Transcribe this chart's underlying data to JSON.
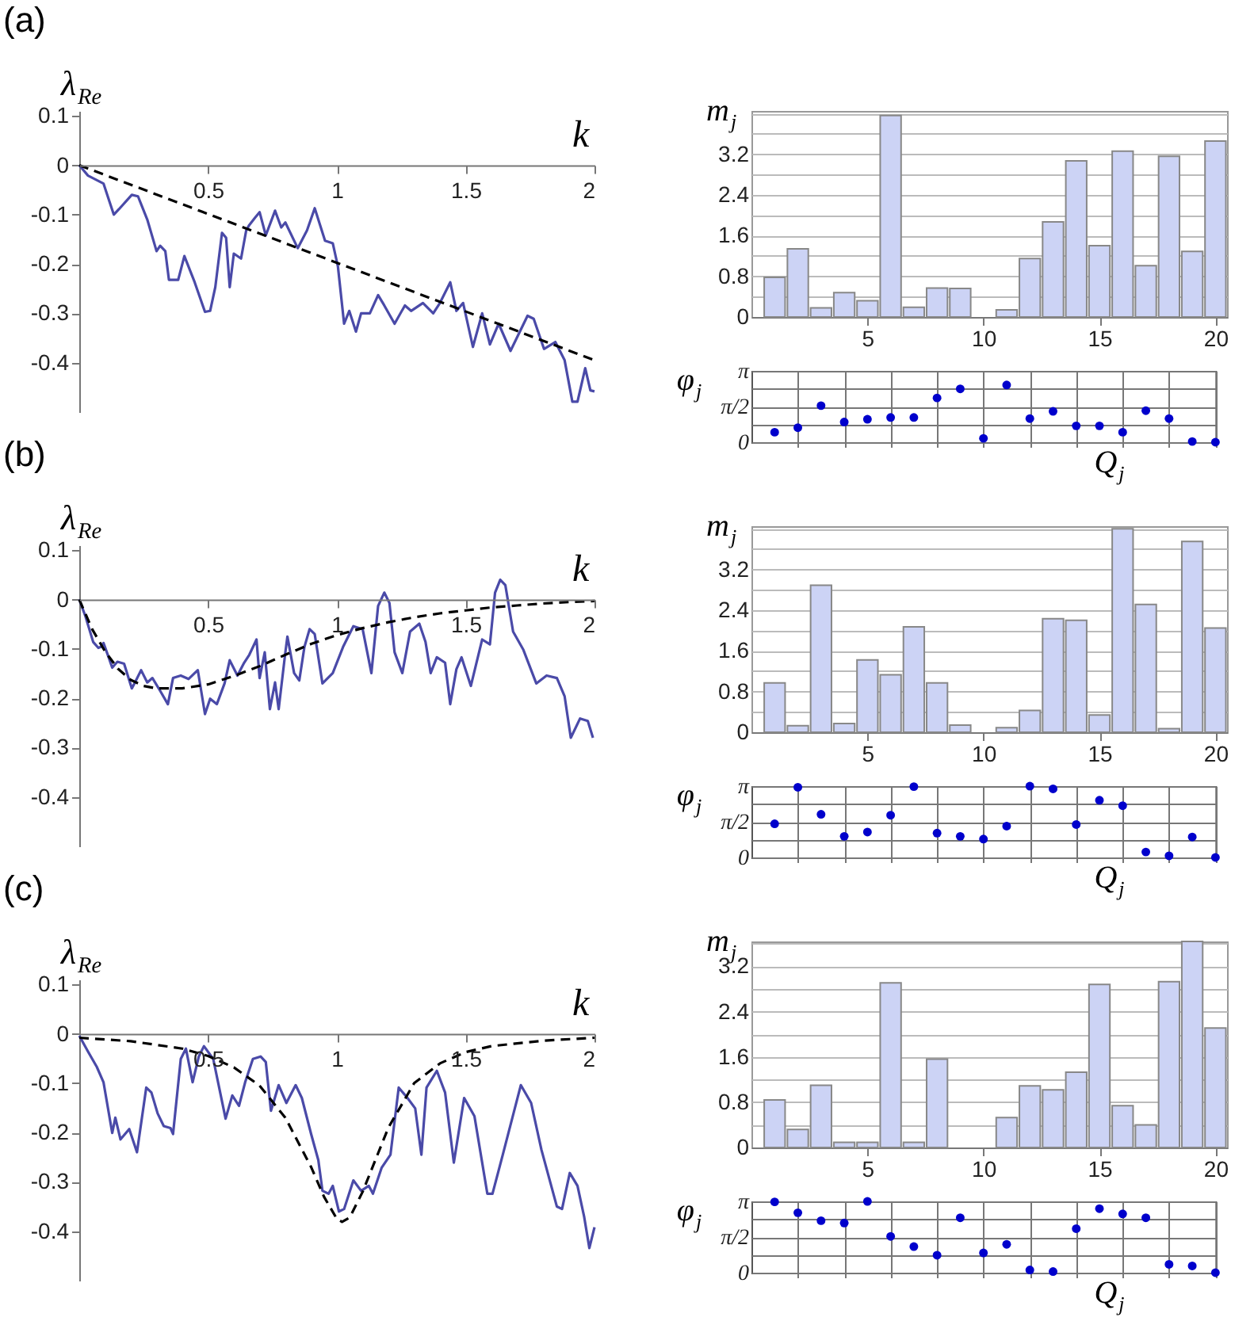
{
  "chart_data": [
    {
      "type": "line",
      "title": "(a)",
      "xlabel": "k",
      "ylabel": "λ$_{Re}$",
      "xlim": [
        0,
        2
      ],
      "ylim": [
        -0.5,
        0.11
      ],
      "xticks": [
        0.5,
        1,
        1.5,
        2
      ],
      "yticks": [
        0.1,
        0,
        -0.1,
        -0.2,
        -0.3,
        -0.4
      ],
      "series": [
        {
          "color": "#4a4aa8",
          "x": [
            0,
            0.034,
            0.094,
            0.134,
            0.154,
            0.204,
            0.228,
            0.264,
            0.3,
            0.314,
            0.334,
            0.348,
            0.384,
            0.408,
            0.448,
            0.488,
            0.508,
            0.528,
            0.554,
            0.57,
            0.584,
            0.6,
            0.628,
            0.648,
            0.66,
            0.684,
            0.7,
            0.724,
            0.76,
            0.784,
            0.8,
            0.848,
            0.884,
            0.914,
            0.954,
            0.984,
            1.004,
            1.028,
            1.048,
            1.074,
            1.094,
            1.128,
            1.16,
            1.184,
            1.224,
            1.264,
            1.288,
            1.334,
            1.374,
            1.4,
            1.44,
            1.464,
            1.49,
            1.528,
            1.564,
            1.594,
            1.628,
            1.674,
            1.74,
            1.764,
            1.804,
            1.848,
            1.884,
            1.914,
            1.934,
            1.964,
            1.984,
            2
          ],
          "values": [
            0,
            -0.021,
            -0.037,
            -0.1,
            -0.089,
            -0.06,
            -0.063,
            -0.11,
            -0.174,
            -0.163,
            -0.174,
            -0.232,
            -0.232,
            -0.184,
            -0.237,
            -0.297,
            -0.295,
            -0.247,
            -0.137,
            -0.147,
            -0.247,
            -0.179,
            -0.189,
            -0.132,
            -0.121,
            -0.105,
            -0.095,
            -0.142,
            -0.092,
            -0.126,
            -0.116,
            -0.168,
            -0.132,
            -0.087,
            -0.153,
            -0.158,
            -0.205,
            -0.321,
            -0.295,
            -0.337,
            -0.3,
            -0.3,
            -0.263,
            -0.284,
            -0.321,
            -0.284,
            -0.295,
            -0.279,
            -0.3,
            -0.279,
            -0.237,
            -0.295,
            -0.279,
            -0.368,
            -0.3,
            -0.363,
            -0.321,
            -0.376,
            -0.305,
            -0.311,
            -0.372,
            -0.358,
            -0.395,
            -0.479,
            -0.479,
            -0.411,
            -0.456,
            -0.458
          ]
        },
        {
          "color": "#000000",
          "line_style": "dashed",
          "x": [
            0,
            2
          ],
          "values": [
            0,
            -0.395
          ]
        }
      ]
    },
    {
      "type": "bar",
      "ylabel": "m$_{j}$",
      "x": [
        1,
        2,
        3,
        4,
        5,
        6,
        7,
        8,
        9,
        10,
        11,
        12,
        13,
        14,
        15,
        16,
        17,
        18,
        19,
        20
      ],
      "values": [
        0.78,
        1.34,
        0.18,
        0.48,
        0.32,
        3.96,
        0.19,
        0.57,
        0.56,
        0,
        0.14,
        1.15,
        1.87,
        3.07,
        1.4,
        3.26,
        1.01,
        3.16,
        1.29,
        3.46
      ],
      "color": "#ccd3f5",
      "xlim": [
        0,
        20.5
      ],
      "ylim": [
        0,
        4.05
      ],
      "xticks": [
        5,
        10,
        15,
        20
      ],
      "yticks": [
        0,
        {
          "value": 0.4,
          "label": null
        },
        0.8,
        {
          "value": 1.2,
          "label": null
        },
        1.6,
        {
          "value": 2,
          "label": null
        },
        2.4,
        {
          "value": 2.8,
          "label": null
        },
        3.2,
        {
          "value": 3.6,
          "label": null
        },
        {
          "value": 4,
          "label": null
        }
      ],
      "grid": "y"
    },
    {
      "type": "scatter",
      "ylabel": "φ$_{j}$",
      "xlabel": "Q$_{j}$",
      "marker": "circle",
      "x": [
        1,
        2,
        3,
        4,
        5,
        6,
        7,
        8,
        9,
        10,
        11,
        12,
        13,
        14,
        15,
        16,
        17,
        18,
        19,
        20
      ],
      "values": [
        0.44,
        0.64,
        1.61,
        0.89,
        1.01,
        1.09,
        1.09,
        1.95,
        2.35,
        0.17,
        2.52,
        1.04,
        1.36,
        0.72,
        0.72,
        0.44,
        1.39,
        1.04,
        0.03,
        0
      ],
      "color": "#0000cc",
      "xlim": [
        0,
        20
      ],
      "ylim": [
        0,
        3.1416
      ],
      "xticks": [
        2,
        4,
        6,
        8,
        10,
        12,
        14,
        16,
        18,
        20
      ],
      "yticks": [
        0,
        {
          "value": 0.7854,
          "label": null
        },
        {
          "value": 1.5708,
          "label": "π/2"
        },
        {
          "value": 2.3562,
          "label": null
        },
        {
          "value": 3.1416,
          "label": "π"
        }
      ],
      "grid": true,
      "tick_labels": "y"
    },
    {
      "type": "line",
      "title": "(b)",
      "xlabel": "k",
      "ylabel": "λ$_{Re}$",
      "xlim": [
        0,
        2
      ],
      "ylim": [
        -0.5,
        0.11
      ],
      "xticks": [
        0.5,
        1,
        1.5,
        2
      ],
      "yticks": [
        0.1,
        0,
        -0.1,
        -0.2,
        -0.3,
        -0.4
      ],
      "series": [
        {
          "color": "#4a4aa8",
          "x": [
            0,
            0.024,
            0.054,
            0.074,
            0.084,
            0.094,
            0.114,
            0.128,
            0.148,
            0.174,
            0.204,
            0.22,
            0.24,
            0.264,
            0.284,
            0.314,
            0.344,
            0.364,
            0.394,
            0.424,
            0.46,
            0.488,
            0.508,
            0.534,
            0.564,
            0.584,
            0.614,
            0.64,
            0.66,
            0.688,
            0.7,
            0.72,
            0.74,
            0.76,
            0.774,
            0.8,
            0.808,
            0.834,
            0.854,
            0.874,
            0.894,
            0.914,
            0.944,
            0.984,
            1.024,
            1.064,
            1.1,
            1.134,
            1.16,
            1.184,
            1.204,
            1.224,
            1.254,
            1.284,
            1.32,
            1.344,
            1.364,
            1.388,
            1.42,
            1.44,
            1.464,
            1.484,
            1.52,
            1.564,
            1.594,
            1.614,
            1.634,
            1.654,
            1.684,
            1.724,
            1.774,
            1.814,
            1.854,
            1.884,
            1.908,
            1.944,
            1.974,
            1.994
          ],
          "values": [
            0,
            -0.034,
            -0.086,
            -0.098,
            -0.096,
            -0.088,
            -0.117,
            -0.138,
            -0.126,
            -0.13,
            -0.18,
            -0.164,
            -0.143,
            -0.168,
            -0.159,
            -0.185,
            -0.212,
            -0.159,
            -0.154,
            -0.161,
            -0.143,
            -0.232,
            -0.201,
            -0.212,
            -0.17,
            -0.123,
            -0.154,
            -0.128,
            -0.112,
            -0.081,
            -0.159,
            -0.107,
            -0.222,
            -0.168,
            -0.222,
            -0.107,
            -0.075,
            -0.149,
            -0.164,
            -0.096,
            -0.06,
            -0.07,
            -0.17,
            -0.149,
            -0.096,
            -0.054,
            -0.06,
            -0.149,
            -0.013,
            0.014,
            -0.007,
            -0.107,
            -0.149,
            -0.065,
            -0.049,
            -0.086,
            -0.149,
            -0.117,
            -0.128,
            -0.212,
            -0.141,
            -0.117,
            -0.175,
            -0.081,
            -0.091,
            0.014,
            0.04,
            0.029,
            -0.065,
            -0.102,
            -0.17,
            -0.154,
            -0.159,
            -0.196,
            -0.28,
            -0.241,
            -0.246,
            -0.28
          ]
        },
        {
          "color": "#000000",
          "line_style": "dashed",
          "x": [
            0,
            0.05,
            0.1,
            0.15,
            0.2,
            0.25,
            0.3,
            0.4,
            0.5,
            0.6,
            0.7,
            0.8,
            0.9,
            1,
            1.1,
            1.2,
            1.3,
            1.4,
            1.5,
            1.6,
            1.7,
            1.8,
            1.9,
            2
          ],
          "values": [
            0,
            -0.06,
            -0.105,
            -0.14,
            -0.163,
            -0.175,
            -0.18,
            -0.18,
            -0.172,
            -0.155,
            -0.135,
            -0.112,
            -0.09,
            -0.072,
            -0.058,
            -0.046,
            -0.036,
            -0.028,
            -0.022,
            -0.016,
            -0.012,
            -0.008,
            -0.005,
            -0.003
          ]
        }
      ]
    },
    {
      "type": "bar",
      "ylabel": "m$_{j}$",
      "x": [
        1,
        2,
        3,
        4,
        5,
        6,
        7,
        8,
        9,
        10,
        11,
        12,
        13,
        14,
        15,
        16,
        17,
        18,
        19,
        20
      ],
      "values": [
        0.97,
        0.13,
        2.89,
        0.17,
        1.42,
        1.13,
        2.07,
        0.97,
        0.14,
        0,
        0.09,
        0.43,
        2.23,
        2.2,
        0.34,
        4,
        2.51,
        0.07,
        3.75,
        2.05
      ],
      "color": "#ccd3f5",
      "xlim": [
        0,
        20.5
      ],
      "ylim": [
        0,
        4.05
      ],
      "xticks": [
        5,
        10,
        15,
        20
      ],
      "yticks": [
        0,
        {
          "value": 0.4,
          "label": null
        },
        0.8,
        {
          "value": 1.2,
          "label": null
        },
        1.6,
        {
          "value": 2,
          "label": null
        },
        2.4,
        {
          "value": 2.8,
          "label": null
        },
        3.2,
        {
          "value": 3.6,
          "label": null
        },
        {
          "value": 4,
          "label": null
        }
      ],
      "grid": "y"
    },
    {
      "type": "scatter",
      "ylabel": "φ$_{j}$",
      "xlabel": "Q$_{j}$",
      "marker": "circle",
      "x": [
        1,
        2,
        3,
        4,
        5,
        6,
        7,
        8,
        9,
        10,
        11,
        12,
        13,
        14,
        15,
        16,
        17,
        18,
        19,
        20
      ],
      "values": [
        1.48,
        3.09,
        1.9,
        0.93,
        1.12,
        1.86,
        3.12,
        1.07,
        0.93,
        0.81,
        1.38,
        3.14,
        3.02,
        1.45,
        2.52,
        2.28,
        0.24,
        0.07,
        0.9,
        0
      ],
      "color": "#0000cc",
      "xlim": [
        0,
        20
      ],
      "ylim": [
        0,
        3.1416
      ],
      "xticks": [
        2,
        4,
        6,
        8,
        10,
        12,
        14,
        16,
        18,
        20
      ],
      "yticks": [
        0,
        {
          "value": 0.7854,
          "label": null
        },
        {
          "value": 1.5708,
          "label": "π/2"
        },
        {
          "value": 2.3562,
          "label": null
        },
        {
          "value": 3.1416,
          "label": "π"
        }
      ],
      "grid": true,
      "tick_labels": "y"
    },
    {
      "type": "line",
      "title": "(c)",
      "xlabel": "k",
      "ylabel": "λ$_{Re}$",
      "xlim": [
        0,
        2
      ],
      "ylim": [
        -0.5,
        0.11
      ],
      "xticks": [
        0.5,
        1,
        1.5,
        2
      ],
      "yticks": [
        0.1,
        0,
        -0.1,
        -0.2,
        -0.3,
        -0.4
      ],
      "series": [
        {
          "color": "#4a4aa8",
          "x": [
            0,
            0.034,
            0.068,
            0.094,
            0.128,
            0.14,
            0.16,
            0.194,
            0.224,
            0.26,
            0.28,
            0.304,
            0.328,
            0.354,
            0.364,
            0.394,
            0.414,
            0.44,
            0.464,
            0.484,
            0.52,
            0.568,
            0.594,
            0.62,
            0.644,
            0.674,
            0.704,
            0.724,
            0.744,
            0.774,
            0.804,
            0.84,
            0.864,
            0.9,
            0.928,
            0.944,
            0.968,
            0.984,
            1.008,
            1.028,
            1.064,
            1.094,
            1.124,
            1.14,
            1.174,
            1.208,
            1.24,
            1.274,
            1.304,
            1.328,
            1.348,
            1.388,
            1.42,
            1.454,
            1.494,
            1.534,
            1.584,
            1.604,
            1.644,
            1.714,
            1.754,
            1.794,
            1.854,
            1.874,
            1.904,
            1.934,
            1.96,
            1.98,
            2
          ],
          "values": [
            -0.004,
            -0.036,
            -0.067,
            -0.098,
            -0.201,
            -0.17,
            -0.214,
            -0.193,
            -0.24,
            -0.109,
            -0.119,
            -0.161,
            -0.187,
            -0.191,
            -0.203,
            -0.051,
            -0.03,
            -0.098,
            -0.046,
            -0.025,
            -0.051,
            -0.172,
            -0.125,
            -0.146,
            -0.098,
            -0.051,
            -0.046,
            -0.057,
            -0.156,
            -0.104,
            -0.14,
            -0.104,
            -0.13,
            -0.203,
            -0.256,
            -0.318,
            -0.324,
            -0.308,
            -0.36,
            -0.355,
            -0.297,
            -0.318,
            -0.308,
            -0.324,
            -0.271,
            -0.245,
            -0.109,
            -0.13,
            -0.151,
            -0.245,
            -0.109,
            -0.075,
            -0.119,
            -0.261,
            -0.13,
            -0.167,
            -0.324,
            -0.324,
            -0.245,
            -0.104,
            -0.14,
            -0.235,
            -0.35,
            -0.355,
            -0.282,
            -0.308,
            -0.371,
            -0.434,
            -0.392
          ]
        },
        {
          "color": "#000000",
          "line_style": "dashed",
          "x": [
            0,
            0.2,
            0.4,
            0.5,
            0.6,
            0.7,
            0.8,
            0.9,
            0.95,
            1,
            1.02,
            1.05,
            1.1,
            1.2,
            1.3,
            1.4,
            1.5,
            1.6,
            1.8,
            2
          ],
          "values": [
            -0.008,
            -0.015,
            -0.03,
            -0.045,
            -0.068,
            -0.105,
            -0.17,
            -0.27,
            -0.33,
            -0.375,
            -0.381,
            -0.372,
            -0.32,
            -0.19,
            -0.1,
            -0.06,
            -0.037,
            -0.025,
            -0.014,
            -0.008
          ]
        }
      ]
    },
    {
      "type": "bar",
      "ylabel": "m$_{j}$",
      "x": [
        1,
        2,
        3,
        4,
        5,
        6,
        7,
        8,
        9,
        10,
        11,
        12,
        13,
        14,
        15,
        16,
        17,
        18,
        19,
        20
      ],
      "values": [
        0.84,
        0.32,
        1.1,
        0.09,
        0.09,
        2.91,
        0.09,
        1.56,
        0,
        0,
        0.53,
        1.09,
        1.02,
        1.33,
        2.88,
        0.74,
        0.4,
        2.93,
        3.64,
        2.11
      ],
      "color": "#ccd3f5",
      "xlim": [
        0,
        20.5
      ],
      "ylim": [
        0,
        3.64
      ],
      "xticks": [
        5,
        10,
        15,
        20
      ],
      "yticks": [
        0,
        {
          "value": 0.4,
          "label": null
        },
        0.8,
        {
          "value": 1.2,
          "label": null
        },
        1.6,
        {
          "value": 2,
          "label": null
        },
        2.4,
        {
          "value": 2.8,
          "label": null
        },
        3.2,
        {
          "value": 3.6,
          "label": null
        }
      ],
      "grid": "y"
    },
    {
      "type": "scatter",
      "ylabel": "φ$_{j}$",
      "xlabel": "Q$_{j}$",
      "marker": "circle",
      "x": [
        1,
        2,
        3,
        4,
        5,
        6,
        7,
        8,
        9,
        10,
        11,
        12,
        13,
        14,
        15,
        16,
        17,
        18,
        19,
        20
      ],
      "values": [
        3.12,
        2.64,
        2.29,
        2.19,
        3.14,
        1.6,
        1.15,
        0.77,
        2.42,
        0.87,
        1.25,
        0.12,
        0.05,
        1.94,
        2.82,
        2.59,
        2.42,
        0.37,
        0.3,
        0
      ],
      "color": "#0000cc",
      "xlim": [
        0,
        20
      ],
      "ylim": [
        0,
        3.1416
      ],
      "xticks": [
        2,
        4,
        6,
        8,
        10,
        12,
        14,
        16,
        18,
        20
      ],
      "yticks": [
        0,
        {
          "value": 0.7854,
          "label": null
        },
        {
          "value": 1.5708,
          "label": "π/2"
        },
        {
          "value": 2.3562,
          "label": null
        },
        {
          "value": 3.1416,
          "label": "π"
        }
      ],
      "grid": true,
      "tick_labels": "y"
    }
  ]
}
